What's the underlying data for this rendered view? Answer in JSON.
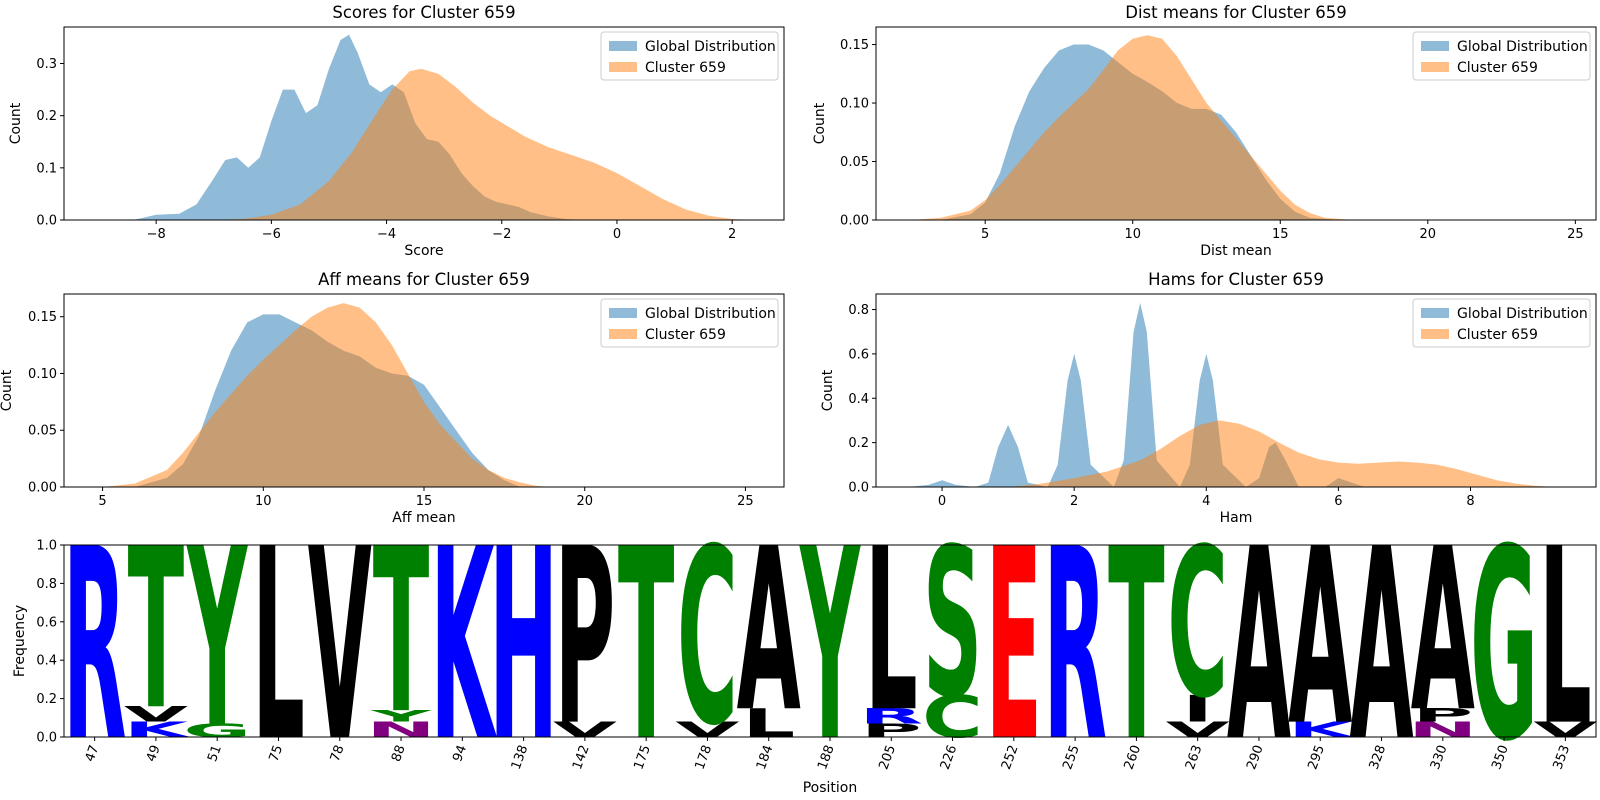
{
  "colors": {
    "global": "#1f77b4",
    "cluster": "#ff7f0e",
    "residue": {
      "R": "#0000ff",
      "K": "#0000ff",
      "H": "#0000ff",
      "E": "#ff0000",
      "D": "#ff0000",
      "N": "#800080",
      "Q": "#800080",
      "T": "#008000",
      "Y": "#008000",
      "G": "#008000",
      "S": "#008000",
      "C": "#008000",
      "L": "#000000",
      "V": "#000000",
      "P": "#000000",
      "A": "#000000",
      "I": "#000000",
      "M": "#000000",
      "F": "#000000",
      "W": "#000000"
    }
  },
  "chart_data": [
    {
      "type": "area",
      "title": "Scores for Cluster 659",
      "xlabel": "Score",
      "ylabel": "Count",
      "xlim": [
        -9.6,
        2.9
      ],
      "ylim": [
        0,
        0.37
      ],
      "xticks": [
        -8,
        -6,
        -4,
        -2,
        0,
        2
      ],
      "yticks": [
        0.0,
        0.1,
        0.2,
        0.3
      ],
      "ytick_labels": [
        "0.0",
        "0.1",
        "0.2",
        "0.3"
      ],
      "xtick_labels": [
        "−8",
        "−6",
        "−4",
        "−2",
        "0",
        "2"
      ],
      "legend": "top-right",
      "series": [
        {
          "name": "Global Distribution",
          "x": [
            -8.4,
            -8.0,
            -7.6,
            -7.3,
            -7.0,
            -6.8,
            -6.6,
            -6.4,
            -6.2,
            -6.0,
            -5.8,
            -5.6,
            -5.4,
            -5.2,
            -5.0,
            -4.8,
            -4.65,
            -4.5,
            -4.3,
            -4.1,
            -3.9,
            -3.7,
            -3.5,
            -3.3,
            -3.1,
            -2.9,
            -2.7,
            -2.5,
            -2.3,
            -2.1,
            -1.9,
            -1.7,
            -1.5,
            -1.2,
            -0.9,
            -0.6
          ],
          "y": [
            0.0,
            0.01,
            0.012,
            0.03,
            0.08,
            0.115,
            0.12,
            0.1,
            0.12,
            0.19,
            0.25,
            0.25,
            0.205,
            0.22,
            0.29,
            0.345,
            0.355,
            0.32,
            0.26,
            0.245,
            0.26,
            0.245,
            0.185,
            0.155,
            0.15,
            0.125,
            0.09,
            0.065,
            0.045,
            0.035,
            0.03,
            0.025,
            0.015,
            0.007,
            0.002,
            0.0
          ]
        },
        {
          "name": "Cluster 659",
          "x": [
            -7.2,
            -6.5,
            -6.0,
            -5.5,
            -5.0,
            -4.6,
            -4.2,
            -3.9,
            -3.6,
            -3.4,
            -3.1,
            -2.8,
            -2.5,
            -2.2,
            -1.9,
            -1.6,
            -1.2,
            -0.8,
            -0.4,
            0.0,
            0.4,
            0.8,
            1.2,
            1.6,
            2.0,
            2.4
          ],
          "y": [
            0.0,
            0.002,
            0.01,
            0.03,
            0.075,
            0.13,
            0.2,
            0.25,
            0.285,
            0.29,
            0.28,
            0.255,
            0.225,
            0.2,
            0.18,
            0.16,
            0.14,
            0.125,
            0.11,
            0.09,
            0.065,
            0.04,
            0.02,
            0.008,
            0.002,
            0.0
          ]
        }
      ]
    },
    {
      "type": "area",
      "title": "Dist means for Cluster 659",
      "xlabel": "Dist mean",
      "ylabel": "Count",
      "xlim": [
        1.3,
        25.7
      ],
      "ylim": [
        0,
        0.165
      ],
      "xticks": [
        5,
        10,
        15,
        20,
        25
      ],
      "yticks": [
        0.0,
        0.05,
        0.1,
        0.15
      ],
      "ytick_labels": [
        "0.00",
        "0.05",
        "0.10",
        "0.15"
      ],
      "xtick_labels": [
        "5",
        "10",
        "15",
        "20",
        "25"
      ],
      "legend": "top-right",
      "series": [
        {
          "name": "Global Distribution",
          "x": [
            3.5,
            4.5,
            5.0,
            5.5,
            6.0,
            6.5,
            7.0,
            7.5,
            8.0,
            8.5,
            9.0,
            9.5,
            10.0,
            10.5,
            11.0,
            11.5,
            12.0,
            12.5,
            13.0,
            13.5,
            14.0,
            14.5,
            15.0,
            15.5,
            16.0,
            17.0
          ],
          "y": [
            0.0,
            0.005,
            0.015,
            0.04,
            0.08,
            0.11,
            0.13,
            0.145,
            0.15,
            0.15,
            0.145,
            0.135,
            0.125,
            0.118,
            0.11,
            0.1,
            0.095,
            0.095,
            0.09,
            0.075,
            0.055,
            0.035,
            0.018,
            0.007,
            0.002,
            0.0
          ]
        },
        {
          "name": "Cluster 659",
          "x": [
            2.5,
            3.5,
            4.5,
            5.0,
            5.5,
            6.0,
            6.5,
            7.0,
            7.5,
            8.0,
            8.5,
            9.0,
            9.5,
            10.0,
            10.5,
            11.0,
            11.5,
            12.0,
            12.5,
            13.0,
            13.5,
            14.0,
            14.5,
            15.0,
            15.5,
            16.0,
            16.5,
            17.5
          ],
          "y": [
            0.0,
            0.002,
            0.008,
            0.017,
            0.03,
            0.045,
            0.06,
            0.075,
            0.088,
            0.1,
            0.112,
            0.128,
            0.145,
            0.155,
            0.158,
            0.155,
            0.14,
            0.12,
            0.1,
            0.085,
            0.07,
            0.055,
            0.04,
            0.025,
            0.013,
            0.006,
            0.002,
            0.0
          ]
        }
      ]
    },
    {
      "type": "area",
      "title": "Aff means for Cluster 659",
      "xlabel": "Aff mean",
      "ylabel": "Count",
      "xlim": [
        3.8,
        26.2
      ],
      "ylim": [
        0,
        0.17
      ],
      "xticks": [
        5,
        10,
        15,
        20,
        25
      ],
      "yticks": [
        0.0,
        0.05,
        0.1,
        0.15
      ],
      "ytick_labels": [
        "0.00",
        "0.05",
        "0.10",
        "0.15"
      ],
      "xtick_labels": [
        "5",
        "10",
        "15",
        "20",
        "25"
      ],
      "legend": "top-right",
      "series": [
        {
          "name": "Global Distribution",
          "x": [
            6.0,
            7.0,
            7.5,
            8.0,
            8.5,
            9.0,
            9.5,
            10.0,
            10.5,
            11.0,
            11.5,
            12.0,
            12.5,
            13.0,
            13.5,
            14.0,
            14.5,
            15.0,
            15.5,
            16.0,
            16.5,
            17.0,
            17.5,
            18.0
          ],
          "y": [
            0.0,
            0.008,
            0.02,
            0.045,
            0.085,
            0.12,
            0.145,
            0.152,
            0.152,
            0.145,
            0.138,
            0.128,
            0.12,
            0.115,
            0.105,
            0.1,
            0.098,
            0.09,
            0.07,
            0.05,
            0.03,
            0.015,
            0.006,
            0.0
          ]
        },
        {
          "name": "Cluster 659",
          "x": [
            5.0,
            6.0,
            7.0,
            7.5,
            8.0,
            8.5,
            9.0,
            9.5,
            10.0,
            10.5,
            11.0,
            11.5,
            12.0,
            12.5,
            13.0,
            13.5,
            14.0,
            14.5,
            15.0,
            15.5,
            16.0,
            16.5,
            17.0,
            17.5,
            18.0,
            18.5,
            19.0
          ],
          "y": [
            0.0,
            0.003,
            0.015,
            0.03,
            0.048,
            0.066,
            0.082,
            0.098,
            0.112,
            0.125,
            0.138,
            0.15,
            0.158,
            0.162,
            0.158,
            0.145,
            0.125,
            0.1,
            0.075,
            0.055,
            0.04,
            0.025,
            0.015,
            0.008,
            0.004,
            0.001,
            0.0
          ]
        }
      ]
    },
    {
      "type": "area",
      "title": "Hams for Cluster 659",
      "xlabel": "Ham",
      "ylabel": "Count",
      "xlim": [
        -1.0,
        9.9
      ],
      "ylim": [
        0,
        0.87
      ],
      "xticks": [
        0,
        2,
        4,
        6,
        8
      ],
      "yticks": [
        0.0,
        0.2,
        0.4,
        0.6,
        0.8
      ],
      "ytick_labels": [
        "0.0",
        "0.2",
        "0.4",
        "0.6",
        "0.8"
      ],
      "xtick_labels": [
        "0",
        "2",
        "4",
        "6",
        "8"
      ],
      "legend": "top-right",
      "series": [
        {
          "name": "Global Distribution",
          "x": [
            -0.5,
            -0.2,
            0.0,
            0.2,
            0.5,
            0.7,
            0.85,
            1.0,
            1.15,
            1.3,
            1.6,
            1.75,
            1.9,
            2.0,
            2.1,
            2.25,
            2.6,
            2.75,
            2.9,
            3.0,
            3.1,
            3.25,
            3.6,
            3.75,
            3.9,
            4.0,
            4.1,
            4.25,
            4.6,
            4.8,
            4.95,
            5.05,
            5.2,
            5.4,
            5.8,
            6.0,
            6.2,
            6.4
          ],
          "y": [
            0.0,
            0.01,
            0.03,
            0.01,
            0.0,
            0.02,
            0.18,
            0.28,
            0.18,
            0.02,
            0.0,
            0.1,
            0.48,
            0.6,
            0.48,
            0.1,
            0.0,
            0.12,
            0.7,
            0.83,
            0.7,
            0.12,
            0.0,
            0.1,
            0.48,
            0.6,
            0.48,
            0.1,
            0.0,
            0.04,
            0.18,
            0.2,
            0.12,
            0.0,
            0.0,
            0.04,
            0.02,
            0.0
          ]
        },
        {
          "name": "Cluster 659",
          "x": [
            1.0,
            1.5,
            2.0,
            2.5,
            3.0,
            3.3,
            3.6,
            3.9,
            4.2,
            4.5,
            4.8,
            5.1,
            5.4,
            5.7,
            6.0,
            6.3,
            6.6,
            6.9,
            7.2,
            7.5,
            7.8,
            8.1,
            8.4,
            8.7,
            9.0,
            9.3
          ],
          "y": [
            0.0,
            0.015,
            0.04,
            0.07,
            0.12,
            0.17,
            0.23,
            0.28,
            0.3,
            0.285,
            0.25,
            0.2,
            0.155,
            0.125,
            0.11,
            0.105,
            0.11,
            0.115,
            0.11,
            0.1,
            0.08,
            0.055,
            0.03,
            0.015,
            0.005,
            0.0
          ]
        }
      ]
    },
    {
      "type": "bar",
      "subtype": "sequence-logo",
      "xlabel": "Position",
      "ylabel": "Frequency",
      "ylim": [
        0,
        1
      ],
      "yticks": [
        0.0,
        0.2,
        0.4,
        0.6,
        0.8,
        1.0
      ],
      "ytick_labels": [
        "0.0",
        "0.2",
        "0.4",
        "0.6",
        "0.8",
        "1.0"
      ],
      "positions": [
        {
          "label": "47",
          "letters": [
            {
              "res": "R",
              "freq": 1.0
            }
          ]
        },
        {
          "label": "49",
          "letters": [
            {
              "res": "K",
              "freq": 0.08
            },
            {
              "res": "V",
              "freq": 0.08
            },
            {
              "res": "T",
              "freq": 0.84
            }
          ]
        },
        {
          "label": "51",
          "letters": [
            {
              "res": "G",
              "freq": 0.07
            },
            {
              "res": "Y",
              "freq": 0.93
            }
          ]
        },
        {
          "label": "75",
          "letters": [
            {
              "res": "L",
              "freq": 1.0
            }
          ]
        },
        {
          "label": "78",
          "letters": [
            {
              "res": "V",
              "freq": 1.0
            }
          ]
        },
        {
          "label": "88",
          "letters": [
            {
              "res": "N",
              "freq": 0.08
            },
            {
              "res": "Y",
              "freq": 0.06
            },
            {
              "res": "T",
              "freq": 0.86
            }
          ]
        },
        {
          "label": "94",
          "letters": [
            {
              "res": "K",
              "freq": 1.0
            }
          ]
        },
        {
          "label": "138",
          "letters": [
            {
              "res": "H",
              "freq": 1.0
            }
          ]
        },
        {
          "label": "142",
          "letters": [
            {
              "res": "V",
              "freq": 0.08
            },
            {
              "res": "P",
              "freq": 0.92
            }
          ]
        },
        {
          "label": "175",
          "letters": [
            {
              "res": "T",
              "freq": 1.0
            }
          ]
        },
        {
          "label": "178",
          "letters": [
            {
              "res": "V",
              "freq": 0.08
            },
            {
              "res": "C",
              "freq": 0.92
            }
          ]
        },
        {
          "label": "184",
          "letters": [
            {
              "res": "L",
              "freq": 0.15
            },
            {
              "res": "A",
              "freq": 0.85
            }
          ]
        },
        {
          "label": "188",
          "letters": [
            {
              "res": "Y",
              "freq": 1.0
            }
          ]
        },
        {
          "label": "205",
          "letters": [
            {
              "res": "P",
              "freq": 0.07
            },
            {
              "res": "R",
              "freq": 0.08
            },
            {
              "res": "L",
              "freq": 0.85
            }
          ]
        },
        {
          "label": "226",
          "letters": [
            {
              "res": "C",
              "freq": 0.22
            },
            {
              "res": "S",
              "freq": 0.78
            }
          ]
        },
        {
          "label": "252",
          "letters": [
            {
              "res": "E",
              "freq": 1.0
            }
          ]
        },
        {
          "label": "255",
          "letters": [
            {
              "res": "R",
              "freq": 1.0
            }
          ]
        },
        {
          "label": "260",
          "letters": [
            {
              "res": "T",
              "freq": 1.0
            }
          ]
        },
        {
          "label": "263",
          "letters": [
            {
              "res": "V",
              "freq": 0.08
            },
            {
              "res": "I",
              "freq": 0.14
            },
            {
              "res": "C",
              "freq": 0.78
            }
          ]
        },
        {
          "label": "290",
          "letters": [
            {
              "res": "A",
              "freq": 1.0
            }
          ]
        },
        {
          "label": "295",
          "letters": [
            {
              "res": "K",
              "freq": 0.08
            },
            {
              "res": "A",
              "freq": 0.92
            }
          ]
        },
        {
          "label": "328",
          "letters": [
            {
              "res": "A",
              "freq": 1.0
            }
          ]
        },
        {
          "label": "330",
          "letters": [
            {
              "res": "N",
              "freq": 0.08
            },
            {
              "res": "P",
              "freq": 0.07
            },
            {
              "res": "A",
              "freq": 0.85
            }
          ]
        },
        {
          "label": "350",
          "letters": [
            {
              "res": "G",
              "freq": 1.0
            }
          ]
        },
        {
          "label": "353",
          "letters": [
            {
              "res": "V",
              "freq": 0.08
            },
            {
              "res": "L",
              "freq": 0.92
            }
          ]
        }
      ]
    }
  ]
}
